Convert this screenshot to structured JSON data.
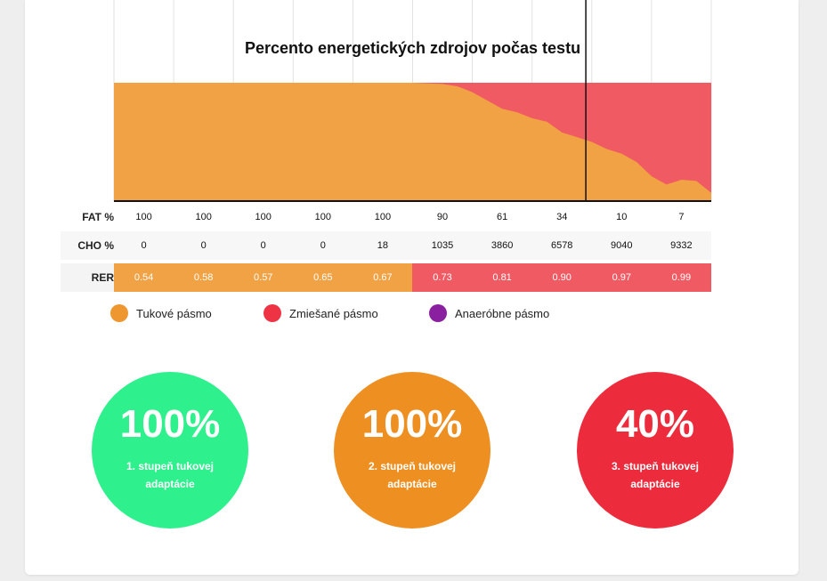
{
  "chart_data": {
    "type": "area",
    "title": "Percento energetických zdrojov počas testu",
    "ylim": [
      0,
      100
    ],
    "series": [
      {
        "name": "Tukové pásmo",
        "color": "#f0a244",
        "x": [
          0,
          0.1,
          0.2,
          0.3,
          0.4,
          0.5,
          0.55,
          0.575,
          0.6,
          0.65,
          0.675,
          0.7,
          0.725,
          0.75,
          0.775,
          0.8,
          0.825,
          0.85,
          0.875,
          0.9,
          0.925,
          0.95,
          0.975,
          1.0
        ],
        "values": [
          100,
          100,
          100,
          100,
          100,
          100,
          99,
          97,
          92,
          78,
          75,
          70,
          67,
          58,
          54,
          50,
          44,
          40,
          33,
          21,
          14,
          18,
          17,
          7
        ]
      },
      {
        "name": "Zmiešané pásmo",
        "color": "#f05a62",
        "x": [
          0,
          1
        ],
        "values": [
          100,
          100
        ]
      }
    ],
    "marker_x": 0.79
  },
  "table": {
    "rows": [
      {
        "label": "FAT %",
        "values": [
          "100",
          "100",
          "100",
          "100",
          "100",
          "90",
          "61",
          "34",
          "10",
          "7"
        ]
      },
      {
        "label": "CHO %",
        "values": [
          "0",
          "0",
          "0",
          "0",
          "18",
          "1035",
          "3860",
          "6578",
          "9040",
          "9332"
        ]
      },
      {
        "label": "RER",
        "values": [
          "0.54",
          "0.58",
          "0.57",
          "0.65",
          "0.67",
          "0.73",
          "0.81",
          "0.90",
          "0.97",
          "0.99"
        ],
        "colors": [
          "#f0a244",
          "#f0a244",
          "#f0a244",
          "#f0a244",
          "#f0a244",
          "#f05a62",
          "#f05a62",
          "#f05a62",
          "#f05a62",
          "#f05a62"
        ]
      }
    ]
  },
  "legend": [
    {
      "label": "Tukové pásmo",
      "color": "#ee9630"
    },
    {
      "label": "Zmiešané pásmo",
      "color": "#ee3444"
    },
    {
      "label": "Anaeróbne pásmo",
      "color": "#8a1fa0"
    }
  ],
  "circles": [
    {
      "percent": "100%",
      "label": "1. stupeň tukovej adaptácie",
      "color": "#2ef08c"
    },
    {
      "percent": "100%",
      "label": "2. stupeň tukovej adaptácie",
      "color": "#ee8f22"
    },
    {
      "percent": "40%",
      "label": "3. stupeň tukovej adaptácie",
      "color": "#ec2c3c"
    }
  ]
}
